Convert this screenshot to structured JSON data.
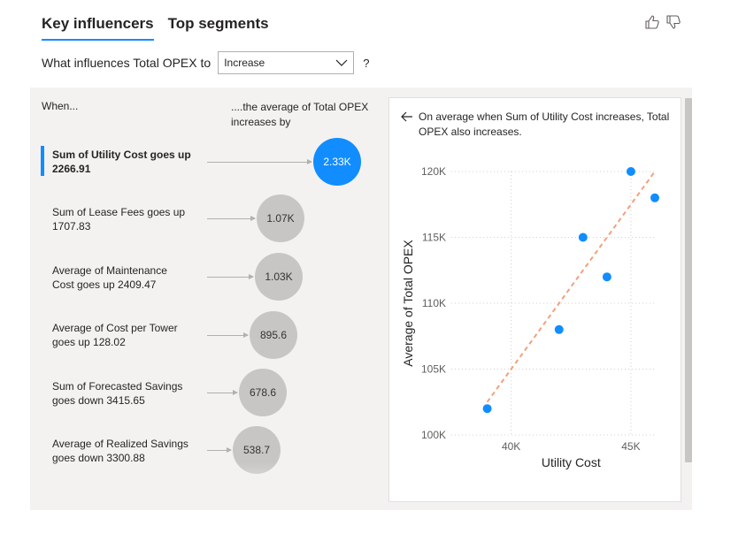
{
  "tabs": [
    {
      "label": "Key influencers",
      "active": true
    },
    {
      "label": "Top segments",
      "active": false
    }
  ],
  "feedback": {
    "like_icon": "thumbs-up-icon",
    "dislike_icon": "thumbs-down-icon"
  },
  "question": {
    "label": "What influences Total OPEX to",
    "dropdown_value": "Increase",
    "help": "?"
  },
  "columns": {
    "when": "When...",
    "average": "....the average of Total OPEX increases by"
  },
  "influencers": [
    {
      "line1": "Sum of Utility Cost goes up",
      "line2": "2266.91",
      "value": "2.33K",
      "magnitude": 2330,
      "selected": true
    },
    {
      "line1": "Sum of Lease Fees goes up",
      "line2": "1707.83",
      "value": "1.07K",
      "magnitude": 1070,
      "selected": false
    },
    {
      "line1": "Average of Maintenance",
      "line2": "Cost goes up 2409.47",
      "value": "1.03K",
      "magnitude": 1030,
      "selected": false
    },
    {
      "line1": "Average of Cost per Tower",
      "line2": "goes up 128.02",
      "value": "895.6",
      "magnitude": 895.6,
      "selected": false
    },
    {
      "line1": "Sum of Forecasted Savings",
      "line2": "goes down 3415.65",
      "value": "678.6",
      "magnitude": 678.6,
      "selected": false
    },
    {
      "line1": "Average of Realized Savings",
      "line2": "goes down 3300.88",
      "value": "538.7",
      "magnitude": 538.7,
      "selected": false
    }
  ],
  "detail": {
    "back_icon": "back-arrow-icon",
    "description": "On average when Sum of Utility Cost increases, Total OPEX also increases."
  },
  "chart_data": {
    "type": "scatter",
    "xlabel": "Utility Cost",
    "ylabel": "Average of Total OPEX",
    "xlim": [
      37500,
      46000
    ],
    "ylim": [
      100000,
      120000
    ],
    "x_ticks": [
      {
        "v": 40000,
        "label": "40K"
      },
      {
        "v": 45000,
        "label": "45K"
      }
    ],
    "y_ticks": [
      {
        "v": 100000,
        "label": "100K"
      },
      {
        "v": 105000,
        "label": "105K"
      },
      {
        "v": 110000,
        "label": "110K"
      },
      {
        "v": 115000,
        "label": "115K"
      },
      {
        "v": 120000,
        "label": "120K"
      }
    ],
    "points": [
      {
        "x": 39000,
        "y": 102000
      },
      {
        "x": 42000,
        "y": 108000
      },
      {
        "x": 43000,
        "y": 115000
      },
      {
        "x": 44000,
        "y": 112000
      },
      {
        "x": 45000,
        "y": 120000
      },
      {
        "x": 46000,
        "y": 118000
      }
    ],
    "trend": [
      {
        "x": 39000,
        "y": 102500
      },
      {
        "x": 46000,
        "y": 120000
      }
    ],
    "point_color": "#118dff",
    "trend_color": "#f2a07b",
    "grid": true
  },
  "colors": {
    "accent": "#118dff",
    "bubble_default": "#c8c6c4",
    "panel_bg": "#f3f2f1"
  }
}
